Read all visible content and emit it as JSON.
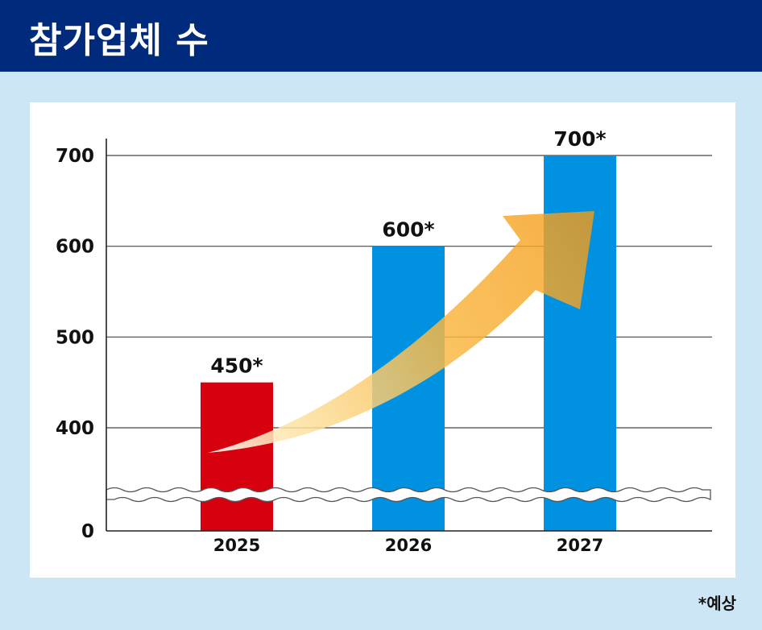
{
  "header": {
    "title": "참가업체 수"
  },
  "footnote": "*예상",
  "colors": {
    "header_bg": "#002b7d",
    "page_bg": "#cce6f6",
    "bar_actual": "#d7000f",
    "bar_forecast": "#0091e0",
    "arrow": "#f7a21b"
  },
  "chart_data": {
    "type": "bar",
    "title": "참가업체 수",
    "xlabel": "",
    "ylabel": "",
    "categories": [
      "2025",
      "2026",
      "2027"
    ],
    "values": [
      450,
      600,
      700
    ],
    "data_labels": [
      "450*",
      "600*",
      "700*"
    ],
    "bar_colors": [
      "#d7000f",
      "#0091e0",
      "#0091e0"
    ],
    "y_ticks": [
      "0",
      "400",
      "500",
      "600",
      "700"
    ],
    "y_tick_values": [
      0,
      400,
      500,
      600,
      700
    ],
    "ylim": [
      0,
      700
    ],
    "axis_break": [
      0,
      400
    ],
    "grid": true,
    "trend_arrow": true
  }
}
